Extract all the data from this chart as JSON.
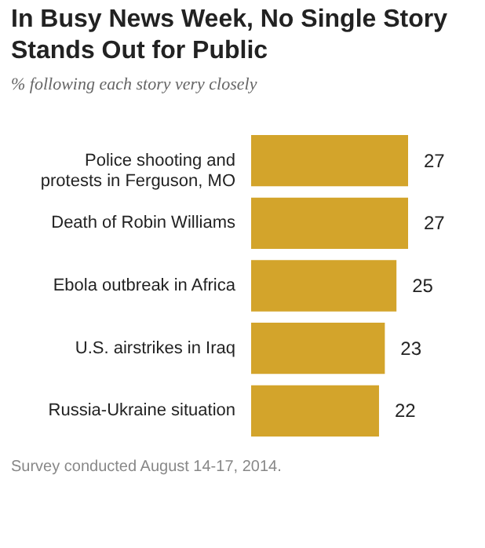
{
  "chart_data": {
    "type": "bar",
    "orientation": "horizontal",
    "title": "In Busy News Week, No Single Story Stands Out for Public",
    "subtitle": "% following each story very closely",
    "categories": [
      "Police shooting and protests in Ferguson, MO",
      "Death of Robin Williams",
      "Ebola outbreak in Africa",
      "U.S. airstrikes in Iraq",
      "Russia-Ukraine situation"
    ],
    "values": [
      27,
      27,
      25,
      23,
      22
    ],
    "color": "#d3a42b",
    "data_labels": true,
    "annotations": [
      "Survey conducted August 14-17, 2014."
    ]
  }
}
